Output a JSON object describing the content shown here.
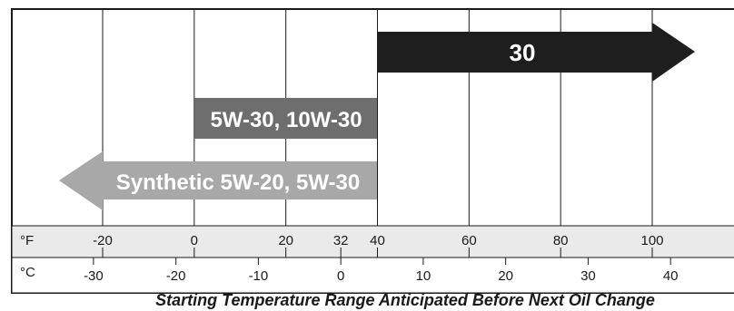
{
  "chart": {
    "caption": "Starting Temperature Range Anticipated Before Next Oil Change",
    "fahrenheit": {
      "unit": "°F",
      "ticks": [
        {
          "label": "-20",
          "value": -20
        },
        {
          "label": "0",
          "value": 0
        },
        {
          "label": "20",
          "value": 20
        },
        {
          "label": "32",
          "value": 32
        },
        {
          "label": "40",
          "value": 40
        },
        {
          "label": "60",
          "value": 60
        },
        {
          "label": "80",
          "value": 80
        },
        {
          "label": "100",
          "value": 100
        }
      ]
    },
    "celsius": {
      "unit": "°C",
      "ticks": [
        {
          "label": "-30",
          "value": -30
        },
        {
          "label": "-20",
          "value": -20
        },
        {
          "label": "-10",
          "value": -10
        },
        {
          "label": "0",
          "value": 0
        },
        {
          "label": "10",
          "value": 10
        },
        {
          "label": "20",
          "value": 20
        },
        {
          "label": "30",
          "value": 30
        },
        {
          "label": "40",
          "value": 40
        }
      ]
    },
    "bands": [
      {
        "label": "30",
        "from_f": 40,
        "to_f": "above 100",
        "direction": "right",
        "color": "#1e1e1e"
      },
      {
        "label": "5W-30, 10W-30",
        "from_f": 0,
        "to_f": 40,
        "direction": "none",
        "color": "#6e6e6e"
      },
      {
        "label": "Synthetic 5W-20, 5W-30",
        "from_f": "below -20",
        "to_f": 40,
        "direction": "left",
        "color": "#a8a8a8"
      }
    ]
  }
}
